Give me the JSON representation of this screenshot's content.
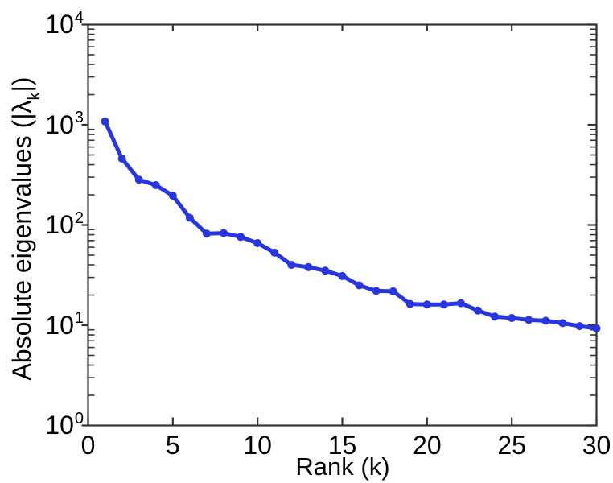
{
  "figure": {
    "background": "#ffffff",
    "text_color": "#000000"
  },
  "chart_data": {
    "type": "line",
    "title": "",
    "xlabel": "Rank (k)",
    "ylabel": "Absolute eigenvalues (|λk|)",
    "ylabel_parts": {
      "prefix": "Absolute eigenvalues (|λ",
      "subscript": "k",
      "suffix": "|)"
    },
    "x": [
      1,
      2,
      3,
      4,
      5,
      6,
      7,
      8,
      9,
      10,
      11,
      12,
      13,
      14,
      15,
      16,
      17,
      18,
      19,
      20,
      21,
      22,
      23,
      24,
      25,
      26,
      27,
      28,
      29,
      30
    ],
    "y": [
      1080,
      460,
      283,
      250,
      196,
      118,
      82,
      83,
      76,
      66,
      53,
      40,
      38,
      35,
      31,
      25,
      22,
      21.8,
      16.3,
      16.1,
      16.1,
      16.6,
      14,
      12.2,
      11.8,
      11.3,
      11.1,
      10.5,
      9.8,
      9.3
    ],
    "xlim": [
      0,
      30
    ],
    "y_scale": "log10",
    "y_exp_lim": [
      0,
      4
    ],
    "x_ticks": [
      0,
      5,
      10,
      15,
      20,
      25,
      30
    ],
    "y_tick_base": "10",
    "y_tick_exponents": [
      0,
      1,
      2,
      3,
      4
    ],
    "grid": false,
    "legend": null,
    "line_color": "#2836df",
    "marker": "circle",
    "marker_color": "#2836df",
    "axis_color": "#333333"
  }
}
